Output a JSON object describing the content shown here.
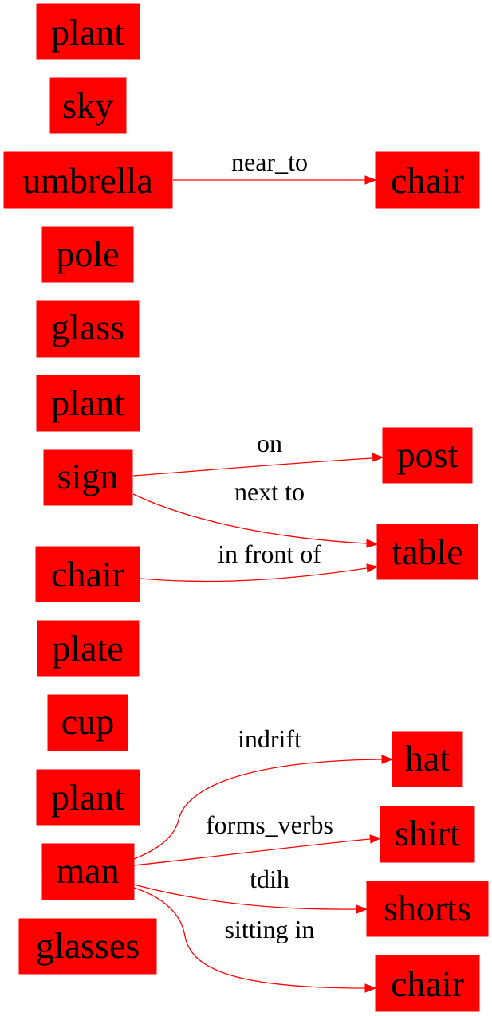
{
  "colors": {
    "node_fill": "#ff0000",
    "edge": "#ff0000",
    "text": "#000000",
    "background": "#ffffff"
  },
  "nodes": [
    {
      "id": "plant_1",
      "label": "plant"
    },
    {
      "id": "sky",
      "label": "sky"
    },
    {
      "id": "umbrella",
      "label": "umbrella"
    },
    {
      "id": "chair_top",
      "label": "chair"
    },
    {
      "id": "pole",
      "label": "pole"
    },
    {
      "id": "glass",
      "label": "glass"
    },
    {
      "id": "plant_2",
      "label": "plant"
    },
    {
      "id": "sign",
      "label": "sign"
    },
    {
      "id": "post",
      "label": "post"
    },
    {
      "id": "table",
      "label": "table"
    },
    {
      "id": "chair_mid",
      "label": "chair"
    },
    {
      "id": "plate",
      "label": "plate"
    },
    {
      "id": "cup",
      "label": "cup"
    },
    {
      "id": "plant_3",
      "label": "plant"
    },
    {
      "id": "hat",
      "label": "hat"
    },
    {
      "id": "shirt",
      "label": "shirt"
    },
    {
      "id": "man",
      "label": "man"
    },
    {
      "id": "shorts",
      "label": "shorts"
    },
    {
      "id": "glasses",
      "label": "glasses"
    },
    {
      "id": "chair_bottom",
      "label": "chair"
    }
  ],
  "edges": [
    {
      "from": "umbrella",
      "to": "chair_top",
      "label": "near_to"
    },
    {
      "from": "sign",
      "to": "post",
      "label": "on"
    },
    {
      "from": "sign",
      "to": "table",
      "label": "next to"
    },
    {
      "from": "chair_mid",
      "to": "table",
      "label": "in front of"
    },
    {
      "from": "man",
      "to": "hat",
      "label": "indrift"
    },
    {
      "from": "man",
      "to": "shirt",
      "label": "forms_verbs"
    },
    {
      "from": "man",
      "to": "shorts",
      "label": "tdih"
    },
    {
      "from": "man",
      "to": "chair_bottom",
      "label": "sitting in"
    }
  ]
}
